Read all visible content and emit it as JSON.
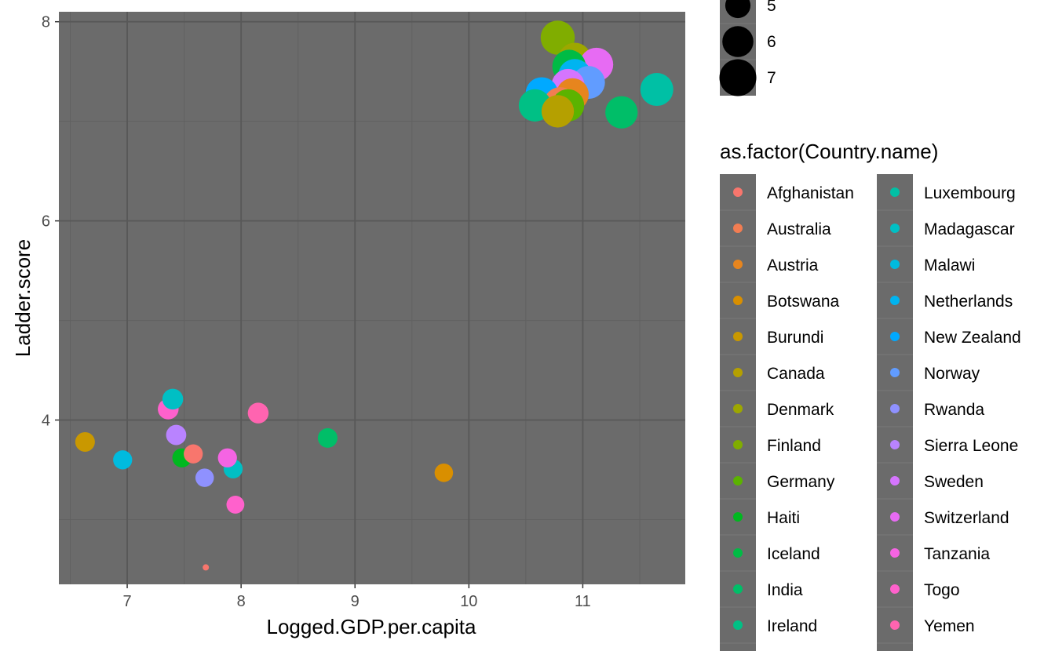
{
  "chart_data": {
    "type": "scatter",
    "xlabel": "Logged.GDP.per.capita",
    "ylabel": "Ladder.score",
    "xlim": [
      6.4,
      11.9
    ],
    "ylim": [
      2.35,
      8.1
    ],
    "x_ticks": [
      "7",
      "8",
      "9",
      "10",
      "11"
    ],
    "y_ticks": [
      "4",
      "6",
      "8"
    ],
    "grid": true,
    "panel_color": "#6b6b6b",
    "size_legend": {
      "title": "",
      "entries": [
        "5",
        "6",
        "7"
      ]
    },
    "color_legend": {
      "title": "as.factor(Country.name)",
      "placement": "right",
      "entries": [
        {
          "name": "Afghanistan",
          "color": "#F8766D"
        },
        {
          "name": "Australia",
          "color": "#F27D52"
        },
        {
          "name": "Austria",
          "color": "#E7851E"
        },
        {
          "name": "Botswana",
          "color": "#D98F00"
        },
        {
          "name": "Burundi",
          "color": "#C99800"
        },
        {
          "name": "Canada",
          "color": "#B5A000"
        },
        {
          "name": "Denmark",
          "color": "#9DA700"
        },
        {
          "name": "Finland",
          "color": "#80AD00"
        },
        {
          "name": "Germany",
          "color": "#5BB300"
        },
        {
          "name": "Haiti",
          "color": "#00B81F"
        },
        {
          "name": "Iceland",
          "color": "#00BB45"
        },
        {
          "name": "India",
          "color": "#00BE68"
        },
        {
          "name": "Ireland",
          "color": "#00C085"
        },
        {
          "name": "Luxembourg",
          "color": "#00C0A5"
        },
        {
          "name": "Madagascar",
          "color": "#00BFC4"
        },
        {
          "name": "Malawi",
          "color": "#00BBDE"
        },
        {
          "name": "Netherlands",
          "color": "#00B4F0"
        },
        {
          "name": "New Zealand",
          "color": "#00A9FF"
        },
        {
          "name": "Norway",
          "color": "#619CFF"
        },
        {
          "name": "Rwanda",
          "color": "#8F91FF"
        },
        {
          "name": "Sierra Leone",
          "color": "#B983FF"
        },
        {
          "name": "Sweden",
          "color": "#D575FE"
        },
        {
          "name": "Switzerland",
          "color": "#E76BF3"
        },
        {
          "name": "Tanzania",
          "color": "#F564E3"
        },
        {
          "name": "Togo",
          "color": "#FF61CC"
        },
        {
          "name": "Yemen",
          "color": "#FF64B0"
        }
      ]
    },
    "points": [
      {
        "country": "Afghanistan",
        "x": 7.69,
        "y": 2.52,
        "size": 2.5
      },
      {
        "country": "Botswana",
        "x": 9.78,
        "y": 3.47,
        "size": 4.6
      },
      {
        "country": "Burundi",
        "x": 6.63,
        "y": 3.78,
        "size": 4.8
      },
      {
        "country": "Haiti",
        "x": 7.48,
        "y": 3.62,
        "size": 4.7
      },
      {
        "country": "India",
        "x": 8.76,
        "y": 3.82,
        "size": 4.8
      },
      {
        "country": "Madagascar",
        "x": 7.93,
        "y": 3.51,
        "size": 4.7
      },
      {
        "country": "Malawi",
        "x": 6.96,
        "y": 3.6,
        "size": 4.7
      },
      {
        "country": "Rwanda",
        "x": 7.68,
        "y": 3.42,
        "size": 4.6
      },
      {
        "country": "Sierra Leone",
        "x": 7.43,
        "y": 3.85,
        "size": 4.9
      },
      {
        "country": "Tanzania",
        "x": 7.88,
        "y": 3.62,
        "size": 4.7
      },
      {
        "country": "Togo",
        "x": 7.36,
        "y": 4.11,
        "size": 5.0
      },
      {
        "country": "Yemen",
        "x": 8.15,
        "y": 4.07,
        "size": 5.0
      },
      {
        "country": "Afghanistan",
        "x": 7.58,
        "y": 3.66,
        "size": 4.7
      },
      {
        "country": "Togo",
        "x": 7.95,
        "y": 3.15,
        "size": 4.5
      },
      {
        "country": "Madagascar",
        "x": 7.4,
        "y": 4.21,
        "size": 5.0
      },
      {
        "country": "Finland",
        "x": 10.78,
        "y": 7.84,
        "size": 7.3
      },
      {
        "country": "Denmark",
        "x": 10.93,
        "y": 7.62,
        "size": 7.2
      },
      {
        "country": "Switzerland",
        "x": 11.12,
        "y": 7.57,
        "size": 7.2
      },
      {
        "country": "Iceland",
        "x": 10.88,
        "y": 7.55,
        "size": 7.2
      },
      {
        "country": "Netherlands",
        "x": 10.93,
        "y": 7.46,
        "size": 7.1
      },
      {
        "country": "Norway",
        "x": 11.05,
        "y": 7.39,
        "size": 7.1
      },
      {
        "country": "Sweden",
        "x": 10.87,
        "y": 7.36,
        "size": 7.1
      },
      {
        "country": "Luxembourg",
        "x": 11.65,
        "y": 7.32,
        "size": 7.1
      },
      {
        "country": "New Zealand",
        "x": 10.64,
        "y": 7.28,
        "size": 7.0
      },
      {
        "country": "Austria",
        "x": 10.91,
        "y": 7.27,
        "size": 7.0
      },
      {
        "country": "Australia",
        "x": 10.8,
        "y": 7.18,
        "size": 7.0
      },
      {
        "country": "Germany",
        "x": 10.87,
        "y": 7.16,
        "size": 7.0
      },
      {
        "country": "Ireland",
        "x": 10.58,
        "y": 7.16,
        "size": 7.0
      },
      {
        "country": "India",
        "x": 11.34,
        "y": 7.09,
        "size": 7.0
      },
      {
        "country": "Canada",
        "x": 10.78,
        "y": 7.1,
        "size": 7.0
      }
    ]
  }
}
